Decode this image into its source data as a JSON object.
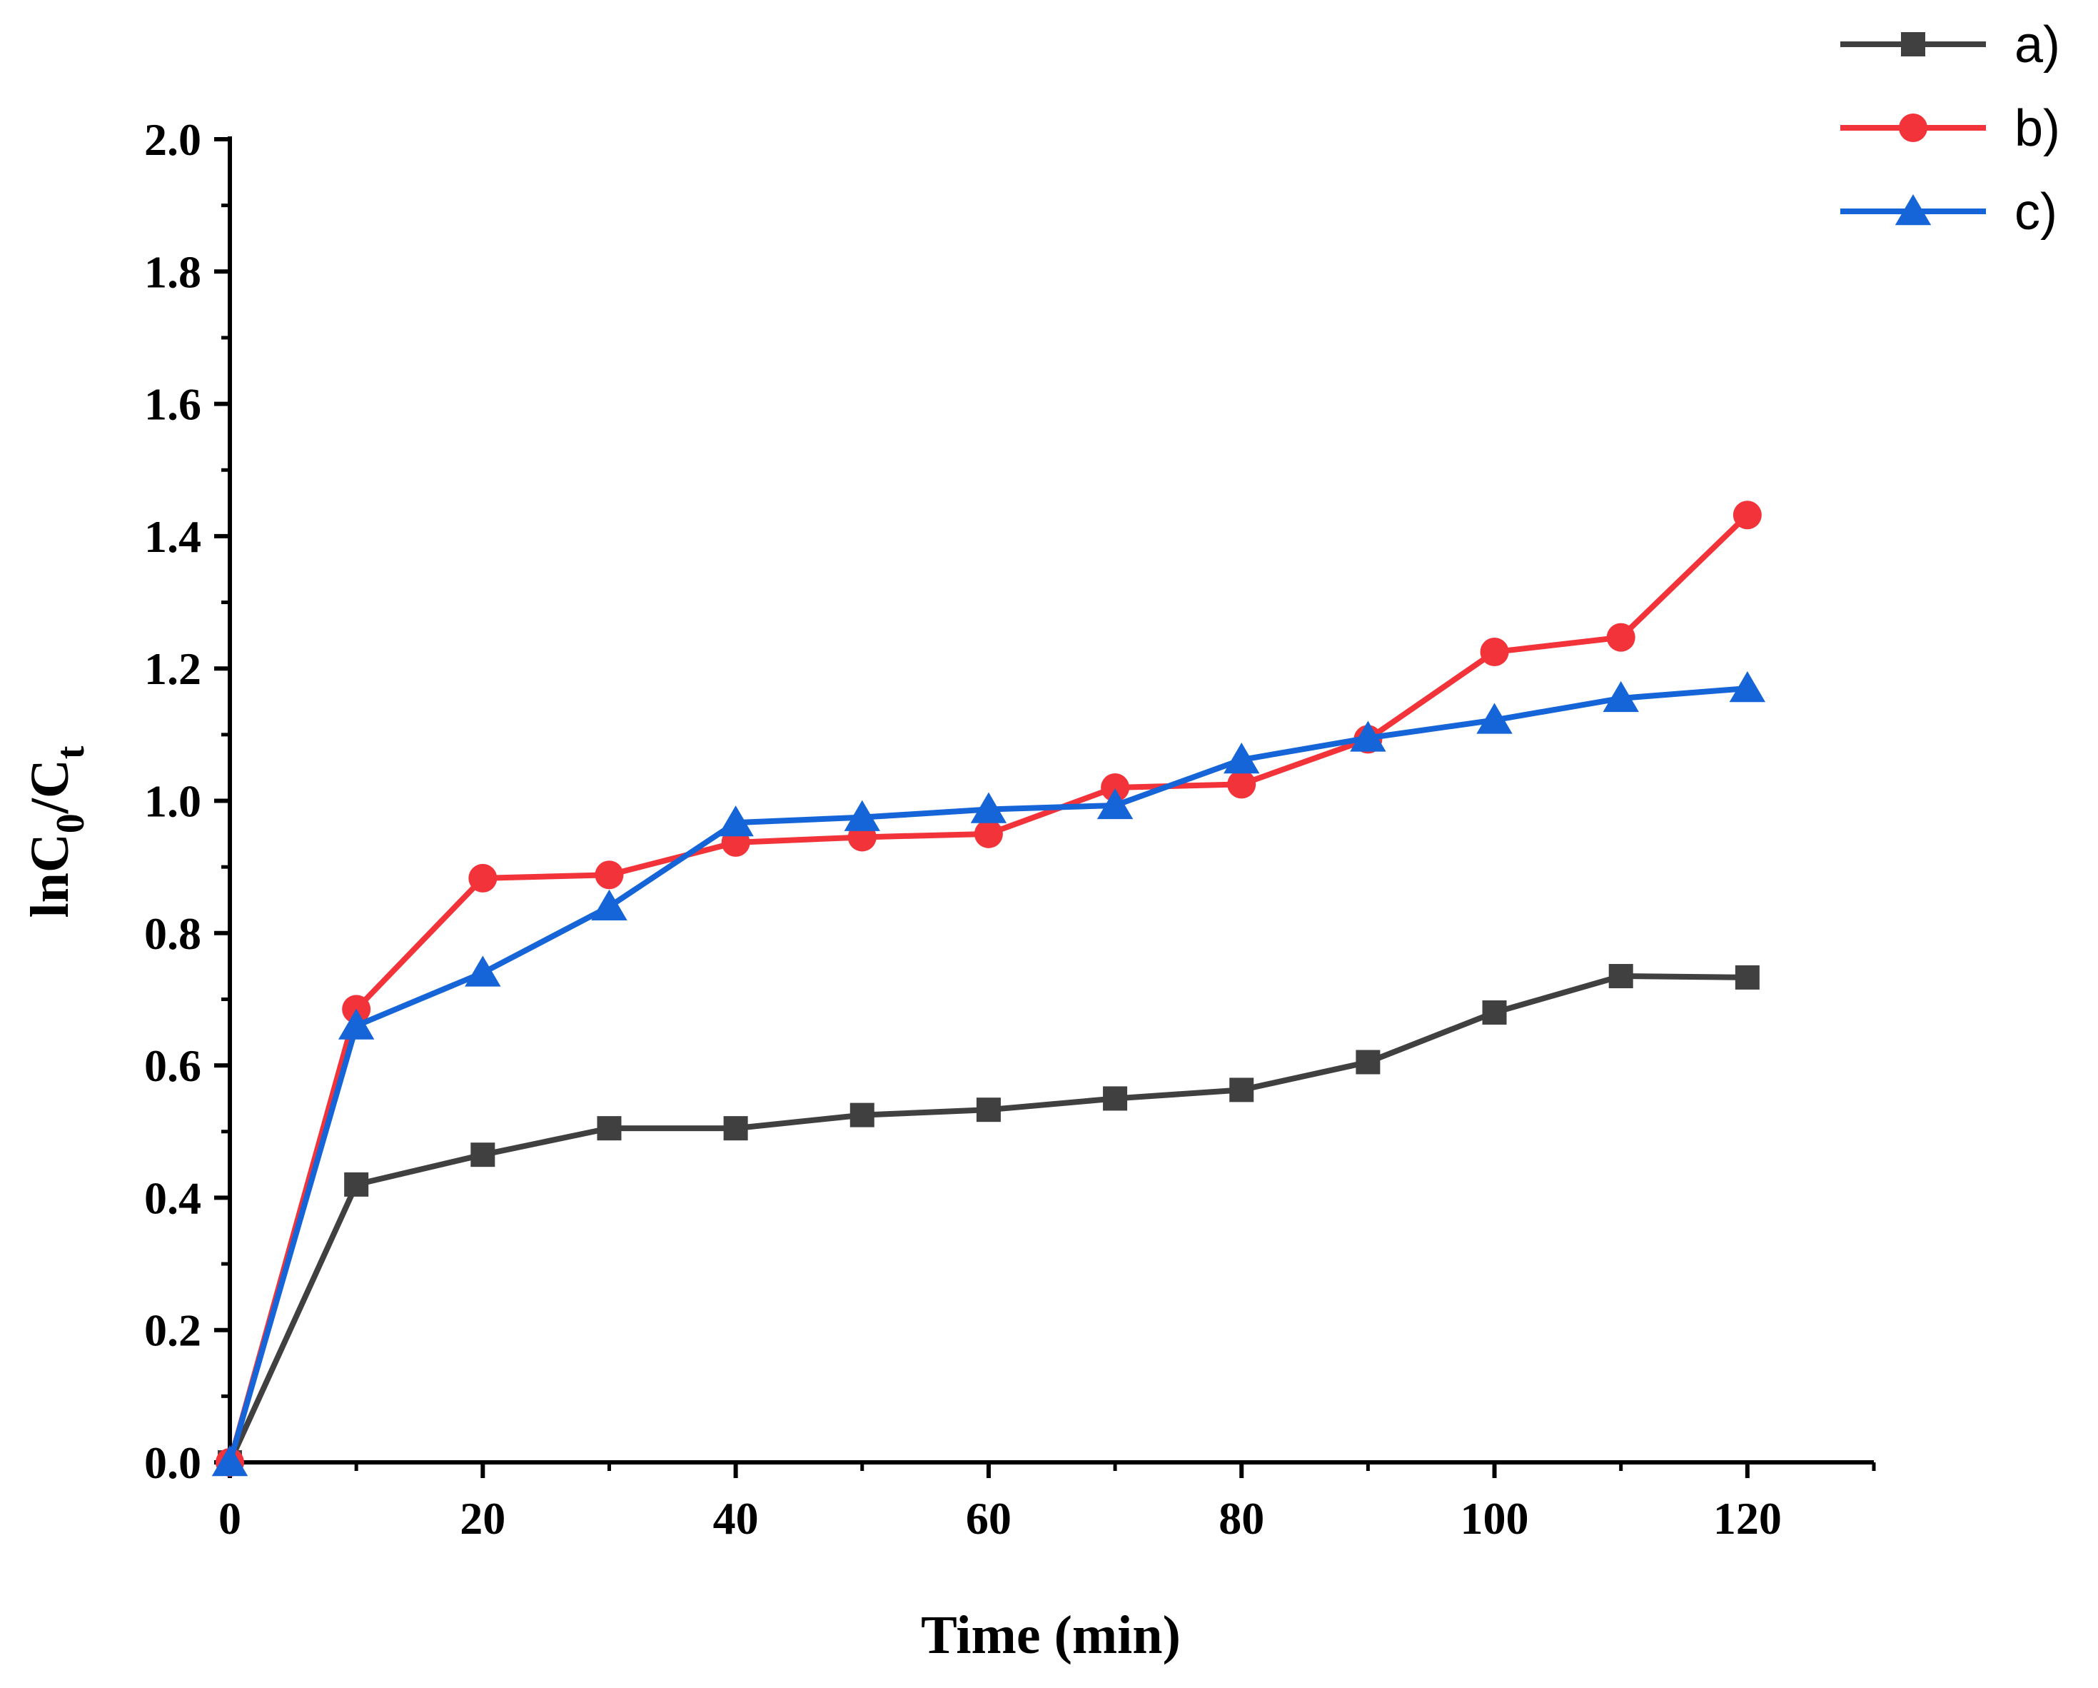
{
  "chart_data": {
    "type": "line",
    "title": "",
    "xlabel": "Time (min)",
    "ylabel": {
      "prefix": "lnC",
      "sub1": "0",
      "mid": "/C",
      "sub2": "t"
    },
    "xlim": [
      0,
      130
    ],
    "ylim": [
      0,
      2.0
    ],
    "xticks": [
      "0",
      "20",
      "40",
      "60",
      "80",
      "100",
      "120"
    ],
    "yticks": [
      "0.0",
      "0.2",
      "0.4",
      "0.6",
      "0.8",
      "1.0",
      "1.2",
      "1.4",
      "1.6",
      "1.8",
      "2.0"
    ],
    "grid": false,
    "legend_position": "top-right, outside plot",
    "x": [
      0,
      10,
      20,
      30,
      40,
      50,
      60,
      70,
      80,
      90,
      100,
      110,
      120
    ],
    "series": [
      {
        "name": "a)",
        "color": "#404040",
        "marker": "square",
        "values": [
          0.0,
          0.42,
          0.465,
          0.505,
          0.505,
          0.525,
          0.533,
          0.55,
          0.563,
          0.605,
          0.68,
          0.735,
          0.733
        ]
      },
      {
        "name": "b)",
        "color": "#f2343a",
        "marker": "circle",
        "values": [
          0.0,
          0.685,
          0.883,
          0.888,
          0.937,
          0.945,
          0.95,
          1.02,
          1.025,
          1.093,
          1.225,
          1.247,
          1.432
        ]
      },
      {
        "name": "c)",
        "color": "#1565d8",
        "marker": "triangle",
        "values": [
          0.0,
          0.66,
          0.74,
          0.84,
          0.967,
          0.975,
          0.987,
          0.993,
          1.062,
          1.095,
          1.122,
          1.155,
          1.17
        ]
      }
    ]
  }
}
